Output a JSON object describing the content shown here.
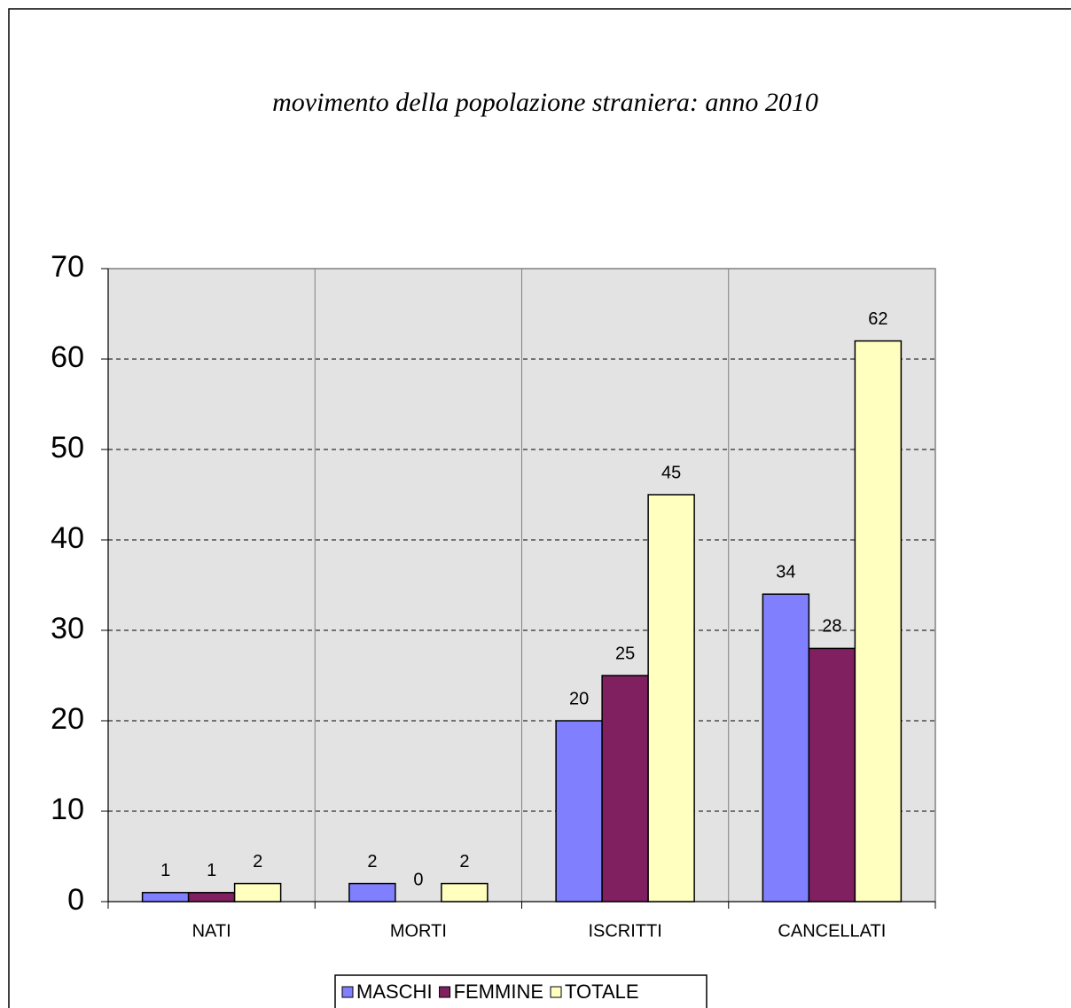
{
  "chart_data": {
    "type": "bar",
    "title": "movimento della popolazione straniera: anno 2010",
    "categories": [
      "NATI",
      "MORTI",
      "ISCRITTI",
      "CANCELLATI"
    ],
    "series": [
      {
        "name": "MASCHI",
        "color": "#8080ff",
        "values": [
          1,
          2,
          20,
          34
        ]
      },
      {
        "name": "FEMMINE",
        "color": "#802060",
        "values": [
          1,
          0,
          25,
          28
        ]
      },
      {
        "name": "TOTALE",
        "color": "#ffffc0",
        "values": [
          2,
          2,
          45,
          62
        ]
      }
    ],
    "ylim": [
      0,
      70
    ],
    "yticks": [
      0,
      10,
      20,
      30,
      40,
      50,
      60,
      70
    ],
    "grid": true,
    "legend": "bottom"
  }
}
